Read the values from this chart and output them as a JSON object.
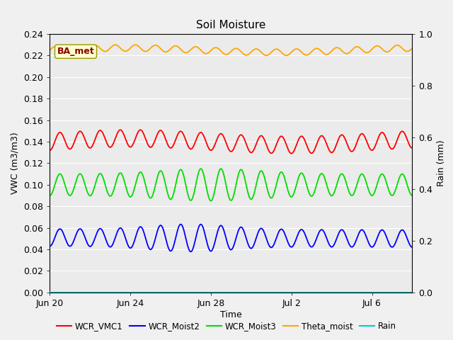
{
  "title": "Soil Moisture",
  "xlabel": "Time",
  "ylabel_left": "VWC (m3/m3)",
  "ylabel_right": "Rain (mm)",
  "ylim_left": [
    0.0,
    0.24
  ],
  "ylim_right": [
    0.0,
    1.0
  ],
  "yticks_left": [
    0.0,
    0.02,
    0.04,
    0.06,
    0.08,
    0.1,
    0.12,
    0.14,
    0.16,
    0.18,
    0.2,
    0.22,
    0.24
  ],
  "yticks_right": [
    0.0,
    0.2,
    0.4,
    0.6,
    0.8,
    1.0
  ],
  "n_days": 18,
  "xtick_labels": [
    "Jun 20",
    "Jun 24",
    "Jun 28",
    "Jul 2",
    "Jul 6"
  ],
  "xtick_positions_days": [
    0,
    4,
    8,
    12,
    16
  ],
  "bg_light": "#ebebeb",
  "bg_dark": "#d8d8d8",
  "grid_color": "#ffffff",
  "fig_bg": "#e0e0e0",
  "vmc1_mean": 0.14,
  "vmc1_amp": 0.008,
  "vmc1_color": "#ff0000",
  "moist2_mean": 0.051,
  "moist2_amp": 0.008,
  "moist2_color": "#0000ff",
  "moist3_mean": 0.1,
  "moist3_amp": 0.01,
  "moist3_color": "#00dd00",
  "theta_mean": 0.226,
  "theta_amp": 0.003,
  "theta_color": "#ffa500",
  "rain_color": "#00cccc",
  "annotation_text": "BA_met",
  "annotation_color": "#8b0000",
  "annotation_bg": "#ffffcc",
  "annotation_border": "#999900",
  "legend_labels": [
    "WCR_VMC1",
    "WCR_Moist2",
    "WCR_Moist3",
    "Theta_moist",
    "Rain"
  ],
  "legend_colors": [
    "#ff0000",
    "#0000ff",
    "#00dd00",
    "#ffa500",
    "#00cccc"
  ]
}
